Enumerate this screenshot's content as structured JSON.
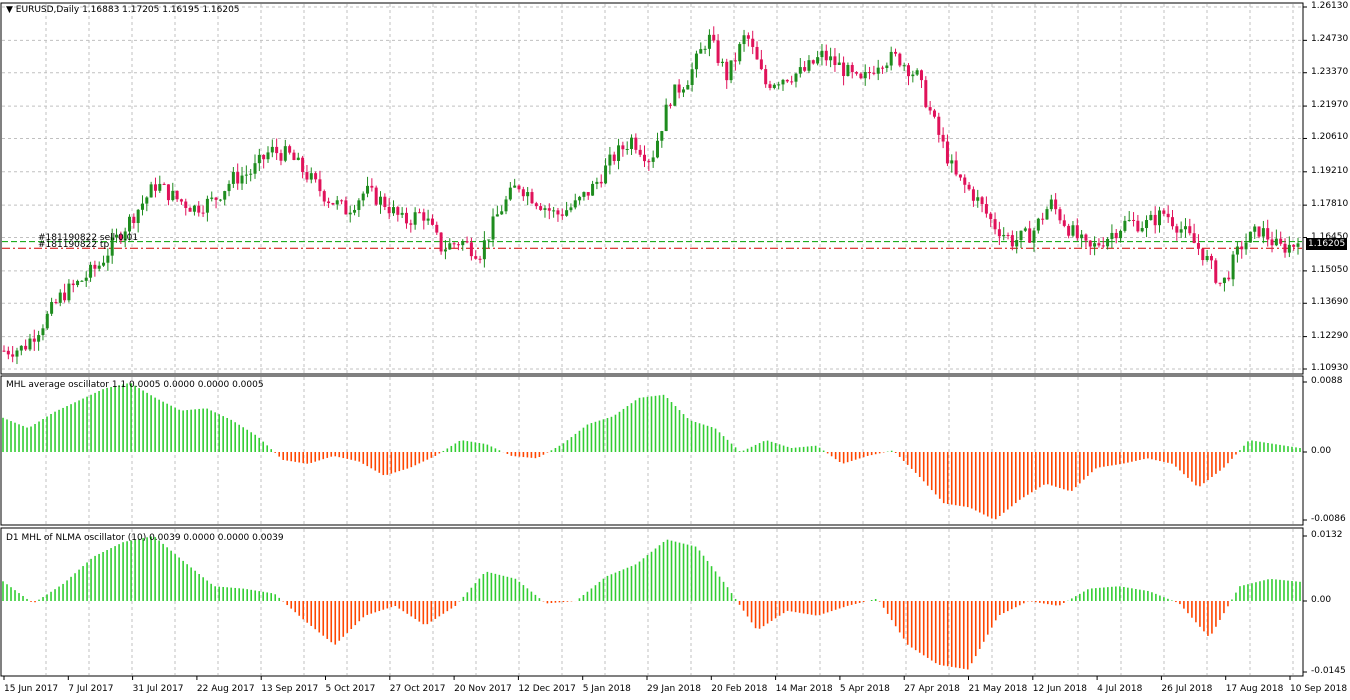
{
  "main_panel": {
    "symbol": "EURUSD,Daily",
    "ohlc": "1.16883 1.17205 1.16195 1.16205",
    "price_scale": [
      "1.26130",
      "1.24730",
      "1.23370",
      "1.21970",
      "1.20610",
      "1.19210",
      "1.17810",
      "1.16450",
      "1.15050",
      "1.13690",
      "1.12290",
      "1.10930"
    ],
    "current_price": "1.16205",
    "order_sell_label": "#181190822 sell 0.01",
    "order_tp_label": "#181190822 tp"
  },
  "osc1": {
    "title": "MHL average oscillator 1.1 0.0005 0.0000 0.0000 0.0005",
    "scale": [
      "0.0088",
      "0.00",
      "-0.0086"
    ]
  },
  "osc2": {
    "title": "D1 MHL of NLMA oscillator (10) 0.0039 0.0000 0.0000 0.0039",
    "scale": [
      "0.0132",
      "0.00",
      "-0.0145"
    ]
  },
  "time_axis": [
    "15 Jun 2017",
    "7 Jul 2017",
    "31 Jul 2017",
    "22 Aug 2017",
    "13 Sep 2017",
    "5 Oct 2017",
    "27 Oct 2017",
    "20 Nov 2017",
    "12 Dec 2017",
    "5 Jan 2018",
    "29 Jan 2018",
    "20 Feb 2018",
    "14 Mar 2018",
    "5 Apr 2018",
    "27 Apr 2018",
    "21 May 2018",
    "12 Jun 2018",
    "4 Jul 2018",
    "26 Jul 2018",
    "17 Aug 2018",
    "10 Sep 2018"
  ],
  "chart_data": [
    {
      "type": "candlestick",
      "title": "EURUSD,Daily",
      "price_range": [
        1.1093,
        1.2613
      ],
      "x_labels": [
        "15 Jun 2017",
        "7 Jul 2017",
        "31 Jul 2017",
        "22 Aug 2017",
        "13 Sep 2017",
        "5 Oct 2017",
        "27 Oct 2017",
        "20 Nov 2017",
        "12 Dec 2017",
        "5 Jan 2018",
        "29 Jan 2018",
        "20 Feb 2018",
        "14 Mar 2018",
        "5 Apr 2018",
        "27 Apr 2018",
        "21 May 2018",
        "12 Jun 2018",
        "4 Jul 2018",
        "26 Jul 2018",
        "17 Aug 2018",
        "10 Sep 2018"
      ],
      "close_path": [
        1.117,
        1.118,
        1.128,
        1.14,
        1.146,
        1.153,
        1.165,
        1.176,
        1.187,
        1.181,
        1.177,
        1.18,
        1.189,
        1.192,
        1.201,
        1.199,
        1.19,
        1.181,
        1.176,
        1.184,
        1.179,
        1.171,
        1.175,
        1.16,
        1.163,
        1.158,
        1.175,
        1.187,
        1.18,
        1.174,
        1.178,
        1.186,
        1.198,
        1.206,
        1.197,
        1.223,
        1.232,
        1.249,
        1.232,
        1.25,
        1.229,
        1.232,
        1.234,
        1.241,
        1.236,
        1.229,
        1.239,
        1.24,
        1.232,
        1.21,
        1.19,
        1.182,
        1.17,
        1.163,
        1.166,
        1.179,
        1.168,
        1.159,
        1.165,
        1.171,
        1.17,
        1.175,
        1.167,
        1.158,
        1.144,
        1.161,
        1.168,
        1.16,
        1.162
      ],
      "order_levels": {
        "sell": 1.1628,
        "tp": 1.16
      },
      "last_close": 1.16205
    },
    {
      "type": "histogram",
      "title": "MHL average oscillator 1.1",
      "y_range": [
        -0.0086,
        0.0088
      ],
      "values": [
        0.0043,
        0.003,
        0.005,
        0.0065,
        0.008,
        0.0087,
        0.0068,
        0.0052,
        0.0055,
        0.004,
        0.002,
        -0.001,
        -0.0015,
        -0.0005,
        -0.0012,
        -0.003,
        -0.002,
        -0.0005,
        0.0015,
        0.001,
        -0.0005,
        -0.0008,
        0.001,
        0.0035,
        0.0045,
        0.0068,
        0.0072,
        0.004,
        0.003,
        0.0,
        0.0015,
        0.0005,
        0.0008,
        -0.0015,
        -0.0005,
        0.0002,
        -0.003,
        -0.0065,
        -0.007,
        -0.0086,
        -0.006,
        -0.004,
        -0.005,
        -0.002,
        -0.0015,
        -0.0008,
        -0.0015,
        -0.0045,
        -0.002,
        0.0015,
        0.001,
        0.0005
      ]
    },
    {
      "type": "histogram",
      "title": "D1 MHL of NLMA oscillator (10)",
      "y_range": [
        -0.0145,
        0.0132
      ],
      "values": [
        0.004,
        -0.0005,
        0.0035,
        0.009,
        0.012,
        0.0132,
        0.008,
        0.003,
        0.0025,
        0.0015,
        -0.004,
        -0.009,
        -0.003,
        -0.001,
        -0.005,
        -0.001,
        0.006,
        0.0045,
        -0.0005,
        0.0,
        0.005,
        0.0075,
        0.0125,
        0.011,
        0.003,
        -0.006,
        -0.002,
        -0.003,
        -0.001,
        0.0005,
        -0.009,
        -0.013,
        -0.014,
        -0.003,
        0.0,
        -0.001,
        0.0025,
        0.003,
        0.002,
        -0.0005,
        -0.0075,
        0.003,
        0.0045,
        0.0039
      ]
    }
  ]
}
